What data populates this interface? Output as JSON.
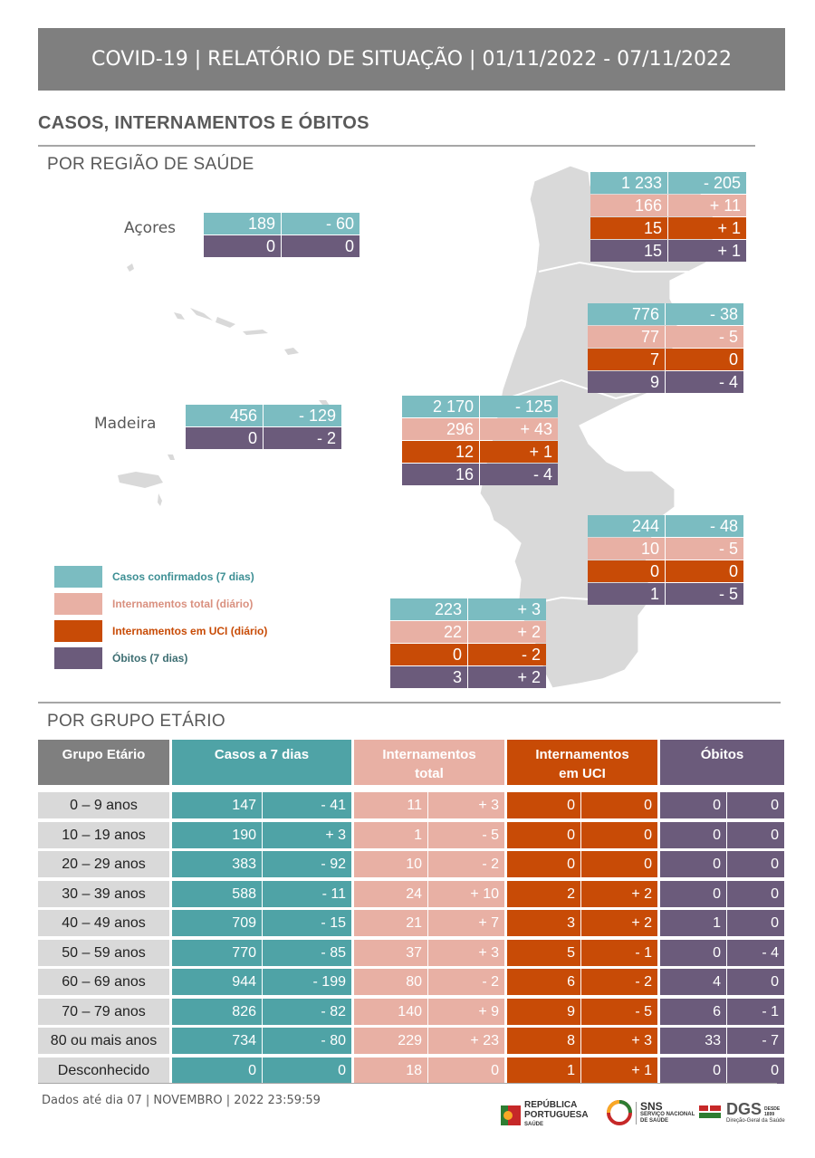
{
  "header": {
    "title": "COVID-19 | RELATÓRIO DE SITUAÇÃO | 01/11/2022 - 07/11/2022"
  },
  "section_title": "CASOS, INTERNAMENTOS E ÓBITOS",
  "region_title": "POR REGIÃO DE SAÚDE",
  "age_title": "POR GRUPO ETÁRIO",
  "colors": {
    "cases": "#7bbcc1",
    "hosp": "#e8b0a4",
    "icu": "#c84b06",
    "deaths": "#6b5b7b",
    "cases_table": "#4fa3a6"
  },
  "regions": {
    "norte": {
      "cases": [
        "1 233",
        "- 205"
      ],
      "hosp": [
        "166",
        "+ 11"
      ],
      "icu": [
        "15",
        "+ 1"
      ],
      "deaths": [
        "15",
        "+ 1"
      ]
    },
    "centro": {
      "cases": [
        "776",
        "- 38"
      ],
      "hosp": [
        "77",
        "- 5"
      ],
      "icu": [
        "7",
        "0"
      ],
      "deaths": [
        "9",
        "- 4"
      ]
    },
    "lvt": {
      "cases": [
        "2 170",
        "- 125"
      ],
      "hosp": [
        "296",
        "+ 43"
      ],
      "icu": [
        "12",
        "+ 1"
      ],
      "deaths": [
        "16",
        "- 4"
      ]
    },
    "alentejo": {
      "cases": [
        "244",
        "- 48"
      ],
      "hosp": [
        "10",
        "- 5"
      ],
      "icu": [
        "0",
        "0"
      ],
      "deaths": [
        "1",
        "- 5"
      ]
    },
    "algarve": {
      "cases": [
        "223",
        "+ 3"
      ],
      "hosp": [
        "22",
        "+ 2"
      ],
      "icu": [
        "0",
        "- 2"
      ],
      "deaths": [
        "3",
        "+ 2"
      ]
    },
    "acores": {
      "label": "Açores",
      "cases": [
        "189",
        "- 60"
      ],
      "deaths": [
        "0",
        "0"
      ]
    },
    "madeira": {
      "label": "Madeira",
      "cases": [
        "456",
        "- 129"
      ],
      "deaths": [
        "0",
        "- 2"
      ]
    }
  },
  "legend": [
    {
      "label": "Casos confirmados (7 dias)",
      "color": "#7bbcc1",
      "text_color": "#3d8f94"
    },
    {
      "label": "Internamentos total (diário)",
      "color": "#e8b0a4",
      "text_color": "#d9907f"
    },
    {
      "label": "Internamentos em UCI (diário)",
      "color": "#c84b06",
      "text_color": "#c84b06"
    },
    {
      "label": "Óbitos (7 dias)",
      "color": "#6b5b7b",
      "text_color": "#3d6e72"
    }
  ],
  "age_table": {
    "headers": [
      "Grupo Etário",
      "Casos a 7 dias",
      "Internamentos total",
      "Internamentos em UCI",
      "Óbitos"
    ],
    "rows": [
      {
        "group": "0 – 9 anos",
        "v": [
          "147",
          "- 41",
          "11",
          "+ 3",
          "0",
          "0",
          "0",
          "0"
        ]
      },
      {
        "group": "10 – 19 anos",
        "v": [
          "190",
          "+ 3",
          "1",
          "- 5",
          "0",
          "0",
          "0",
          "0"
        ]
      },
      {
        "group": "20 – 29 anos",
        "v": [
          "383",
          "- 92",
          "10",
          "- 2",
          "0",
          "0",
          "0",
          "0"
        ]
      },
      {
        "group": "30 – 39 anos",
        "v": [
          "588",
          "- 11",
          "24",
          "+ 10",
          "2",
          "+ 2",
          "0",
          "0"
        ]
      },
      {
        "group": "40 – 49 anos",
        "v": [
          "709",
          "- 15",
          "21",
          "+ 7",
          "3",
          "+ 2",
          "1",
          "0"
        ]
      },
      {
        "group": "50 – 59 anos",
        "v": [
          "770",
          "- 85",
          "37",
          "+ 3",
          "5",
          "- 1",
          "0",
          "- 4"
        ]
      },
      {
        "group": "60 – 69 anos",
        "v": [
          "944",
          "- 199",
          "80",
          "- 2",
          "6",
          "- 2",
          "4",
          "0"
        ]
      },
      {
        "group": "70 – 79 anos",
        "v": [
          "826",
          "- 82",
          "140",
          "+ 9",
          "9",
          "- 5",
          "6",
          "- 1"
        ]
      },
      {
        "group": "80 ou mais anos",
        "v": [
          "734",
          "- 80",
          "229",
          "+ 23",
          "8",
          "+ 3",
          "33",
          "- 7"
        ]
      },
      {
        "group": "Desconhecido",
        "v": [
          "0",
          "0",
          "18",
          "0",
          "1",
          "+ 1",
          "0",
          "0"
        ]
      }
    ]
  },
  "footer": {
    "text": "Dados até dia 07 | NOVEMBRO | 2022 23:59:59",
    "logo1_line1": "REPÚBLICA",
    "logo1_line2": "PORTUGUESA",
    "logo1_line3": "SAÚDE",
    "logo2_line1": "SNS",
    "logo2_line2": "SERVIÇO NACIONAL",
    "logo2_line3": "DE SAÚDE",
    "logo3_line1": "DGS",
    "logo3_line2": "Direção-Geral da Saúde",
    "logo3_since": "DESDE 1899"
  }
}
